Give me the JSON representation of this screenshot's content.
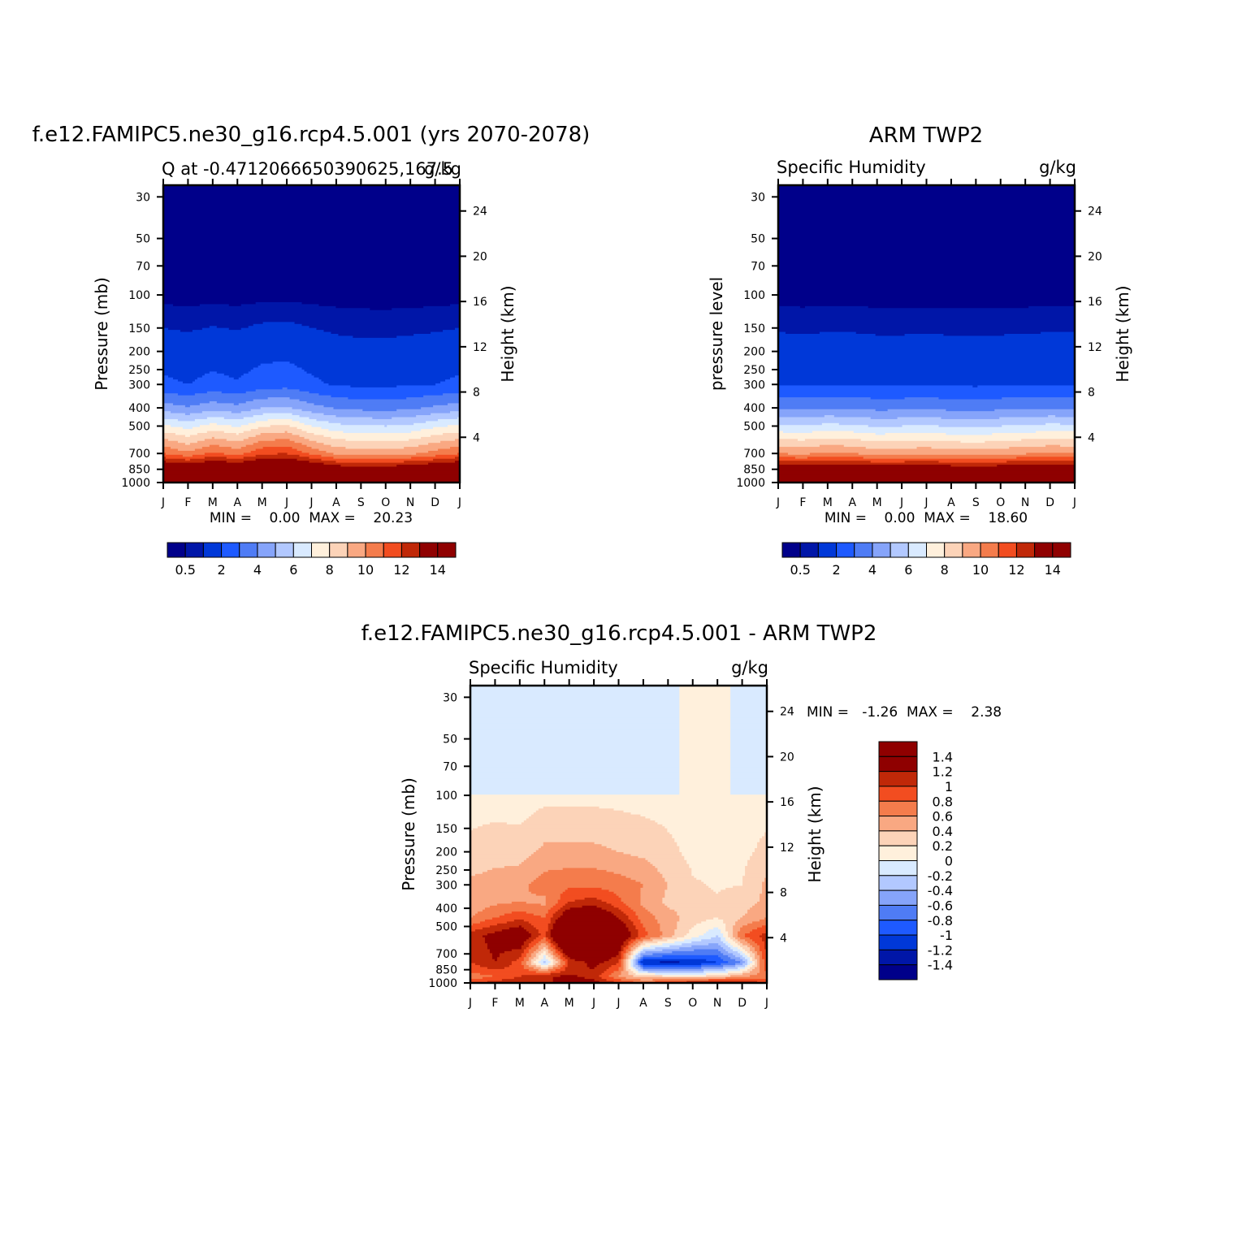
{
  "chart_data": [
    {
      "type": "heatmap",
      "title": "f.e12.FAMIPC5.ne30_g16.rcp4.5.001 (yrs 2070-2078)",
      "subtitle_left": "Q at -0.4712066650390625,167.5",
      "subtitle_right": "g/kg",
      "ylabel": "Pressure (mb)",
      "ylabel_right": "Height (km)",
      "x_ticklabels": [
        "J",
        "F",
        "M",
        "A",
        "M",
        "J",
        "J",
        "A",
        "S",
        "O",
        "N",
        "D",
        "J"
      ],
      "y_ticks": [
        30,
        50,
        70,
        100,
        150,
        200,
        250,
        300,
        400,
        500,
        700,
        850,
        1000
      ],
      "y_right_ticks": [
        4,
        8,
        12,
        16,
        20,
        24
      ],
      "stats": "MIN =    0.00  MAX =    20.23",
      "colorbar": {
        "levels": [
          0.5,
          1,
          2,
          3,
          4,
          5,
          6,
          7,
          8,
          9,
          10,
          11,
          12,
          13,
          14
        ],
        "labels": [
          "0.5",
          "2",
          "4",
          "6",
          "8",
          "10",
          "12",
          "14"
        ],
        "colors": [
          "#00008a",
          "#0016a8",
          "#0038d8",
          "#1e5aff",
          "#4f7cf5",
          "#86a4fa",
          "#b2c8ff",
          "#d9eaff",
          "#fff0dc",
          "#fcd3b8",
          "#f9a882",
          "#f47c4c",
          "#f24d20",
          "#c02808",
          "#8f0000"
        ]
      },
      "profiles": [
        [
          19.8,
          15,
          11,
          7.2,
          4.5,
          2.2,
          0.3
        ],
        [
          19.6,
          14.6,
          10.2,
          6.6,
          4.1,
          2.0,
          0.28
        ],
        [
          20.0,
          15.2,
          11.2,
          7.4,
          4.6,
          2.3,
          0.3
        ],
        [
          19.8,
          14.8,
          10.6,
          6.9,
          4.3,
          2.1,
          0.28
        ],
        [
          20.1,
          15.6,
          11.8,
          7.9,
          5.0,
          2.5,
          0.32
        ],
        [
          20.2,
          15.7,
          12.0,
          8.2,
          5.1,
          2.6,
          0.33
        ],
        [
          20.0,
          14.8,
          10.8,
          7.0,
          4.4,
          2.2,
          0.3
        ],
        [
          19.7,
          14.0,
          9.8,
          6.3,
          3.9,
          1.9,
          0.28
        ],
        [
          19.6,
          13.8,
          9.6,
          6.1,
          3.7,
          1.8,
          0.26
        ],
        [
          19.6,
          13.8,
          9.5,
          6.0,
          3.6,
          1.8,
          0.25
        ],
        [
          19.7,
          14.2,
          9.8,
          6.2,
          3.8,
          1.9,
          0.26
        ],
        [
          19.7,
          14.6,
          10.4,
          6.8,
          4.2,
          2.0,
          0.28
        ],
        [
          19.8,
          15,
          11,
          7.2,
          4.5,
          2.2,
          0.3
        ]
      ]
    },
    {
      "type": "heatmap",
      "title": "ARM TWP2",
      "subtitle_left": "Specific Humidity",
      "subtitle_right": "g/kg",
      "ylabel": "pressure level",
      "ylabel_right": "Height (km)",
      "x_ticklabels": [
        "J",
        "F",
        "M",
        "A",
        "M",
        "J",
        "J",
        "A",
        "S",
        "O",
        "N",
        "D",
        "J"
      ],
      "y_ticks": [
        30,
        50,
        70,
        100,
        150,
        200,
        250,
        300,
        400,
        500,
        700,
        850,
        1000
      ],
      "y_right_ticks": [
        4,
        8,
        12,
        16,
        20,
        24
      ],
      "stats": "MIN =    0.00  MAX =    18.60",
      "colorbar": {
        "levels": [
          0.5,
          1,
          2,
          3,
          4,
          5,
          6,
          7,
          8,
          9,
          10,
          11,
          12,
          13,
          14
        ],
        "labels": [
          "0.5",
          "2",
          "4",
          "6",
          "8",
          "10",
          "12",
          "14"
        ],
        "colors": [
          "#00008a",
          "#0016a8",
          "#0038d8",
          "#1e5aff",
          "#4f7cf5",
          "#86a4fa",
          "#b2c8ff",
          "#d9eaff",
          "#fff0dc",
          "#fcd3b8",
          "#f9a882",
          "#f47c4c",
          "#f24d20",
          "#c02808",
          "#8f0000"
        ]
      },
      "profiles": [
        [
          18.2,
          14.2,
          10.0,
          6.2,
          3.9,
          2.0,
          0.28
        ],
        [
          18.2,
          14.0,
          9.8,
          6.1,
          3.8,
          1.95,
          0.27
        ],
        [
          18.3,
          14.4,
          10.2,
          6.3,
          3.95,
          2.0,
          0.28
        ],
        [
          18.3,
          14.3,
          10.0,
          6.2,
          3.9,
          2.0,
          0.28
        ],
        [
          18.2,
          14.0,
          9.6,
          5.9,
          3.7,
          1.9,
          0.27
        ],
        [
          18.3,
          14.1,
          9.7,
          6.0,
          3.75,
          1.9,
          0.27
        ],
        [
          18.3,
          14.2,
          9.8,
          6.1,
          3.8,
          1.95,
          0.27
        ],
        [
          18.2,
          14.0,
          9.6,
          5.9,
          3.7,
          1.9,
          0.26
        ],
        [
          18.2,
          13.9,
          9.5,
          5.8,
          3.6,
          1.85,
          0.26
        ],
        [
          18.3,
          14.0,
          9.7,
          6.0,
          3.75,
          1.9,
          0.27
        ],
        [
          18.4,
          14.2,
          9.9,
          6.1,
          3.85,
          1.95,
          0.27
        ],
        [
          18.4,
          14.4,
          10.1,
          6.3,
          3.95,
          2.0,
          0.28
        ],
        [
          18.2,
          14.2,
          10.0,
          6.2,
          3.9,
          2.0,
          0.28
        ]
      ]
    },
    {
      "type": "heatmap",
      "title": "f.e12.FAMIPC5.ne30_g16.rcp4.5.001 - ARM TWP2",
      "subtitle_left": "Specific Humidity",
      "subtitle_right": "g/kg",
      "ylabel": "Pressure (mb)",
      "ylabel_right": "Height (km)",
      "x_ticklabels": [
        "J",
        "F",
        "M",
        "A",
        "M",
        "J",
        "J",
        "A",
        "S",
        "O",
        "N",
        "D",
        "J"
      ],
      "y_ticks": [
        30,
        50,
        70,
        100,
        150,
        200,
        250,
        300,
        400,
        500,
        700,
        850,
        1000
      ],
      "y_right_ticks": [
        4,
        8,
        12,
        16,
        20,
        24
      ],
      "stats": "MIN =   -1.26  MAX =    2.38",
      "colorbar": {
        "levels": [
          -1.4,
          -1.2,
          -1,
          -0.8,
          -0.6,
          -0.4,
          -0.2,
          0,
          0.2,
          0.4,
          0.6,
          0.8,
          1,
          1.2,
          1.4
        ],
        "labels": [
          "1.4",
          "1.2",
          "1",
          "0.8",
          "0.6",
          "0.4",
          "0.2",
          "0",
          "-0.2",
          "-0.4",
          "-0.6",
          "-0.8",
          "-1",
          "-1.2",
          "-1.4"
        ],
        "colors": [
          "#00008a",
          "#0016a8",
          "#0038d8",
          "#1e5aff",
          "#4f7cf5",
          "#86a4fa",
          "#b2c8ff",
          "#d9eaff",
          "#fff0dc",
          "#fcd3b8",
          "#f9a882",
          "#f47c4c",
          "#f24d20",
          "#c02808",
          "#8f0000",
          "#8f0000"
        ]
      },
      "profiles": [
        [
          0.9,
          0.7,
          1.0,
          1.1,
          0.6,
          0.45,
          0.45,
          0.25,
          0.12,
          -0.05
        ],
        [
          1.1,
          0.8,
          1.2,
          1.3,
          0.8,
          0.55,
          0.5,
          0.3,
          0.12,
          -0.05
        ],
        [
          1.2,
          1.0,
          0.9,
          1.5,
          0.95,
          0.6,
          0.55,
          0.3,
          0.1,
          -0.05
        ],
        [
          1.0,
          1.2,
          -0.3,
          0.9,
          0.8,
          0.55,
          0.7,
          0.45,
          0.15,
          -0.05
        ],
        [
          1.5,
          1.25,
          1.0,
          2.3,
          1.5,
          1.0,
          0.75,
          0.45,
          0.15,
          -0.05
        ],
        [
          1.3,
          1.1,
          1.3,
          2.38,
          1.6,
          1.1,
          0.75,
          0.45,
          0.15,
          -0.05
        ],
        [
          1.0,
          0.6,
          1.0,
          1.6,
          1.2,
          0.85,
          0.7,
          0.4,
          0.14,
          -0.05
        ],
        [
          0.8,
          0.3,
          -1.2,
          0.9,
          0.7,
          0.55,
          0.6,
          0.35,
          0.12,
          -0.05
        ],
        [
          1.0,
          0.25,
          -1.26,
          0.5,
          0.5,
          0.35,
          0.4,
          0.25,
          0.12,
          -0.05
        ],
        [
          1.2,
          0.2,
          -1.2,
          0.1,
          0.3,
          0.28,
          0.22,
          0.15,
          0.1,
          0.05
        ],
        [
          1.3,
          0.3,
          -1.0,
          -0.2,
          0.2,
          0.22,
          0.18,
          0.12,
          0.1,
          0.05
        ],
        [
          1.3,
          0.6,
          -0.6,
          0.8,
          0.4,
          0.3,
          0.2,
          0.15,
          0.12,
          -0.05
        ],
        [
          0.9,
          0.7,
          1.0,
          1.1,
          0.6,
          0.45,
          0.45,
          0.25,
          0.12,
          -0.05
        ]
      ]
    }
  ]
}
